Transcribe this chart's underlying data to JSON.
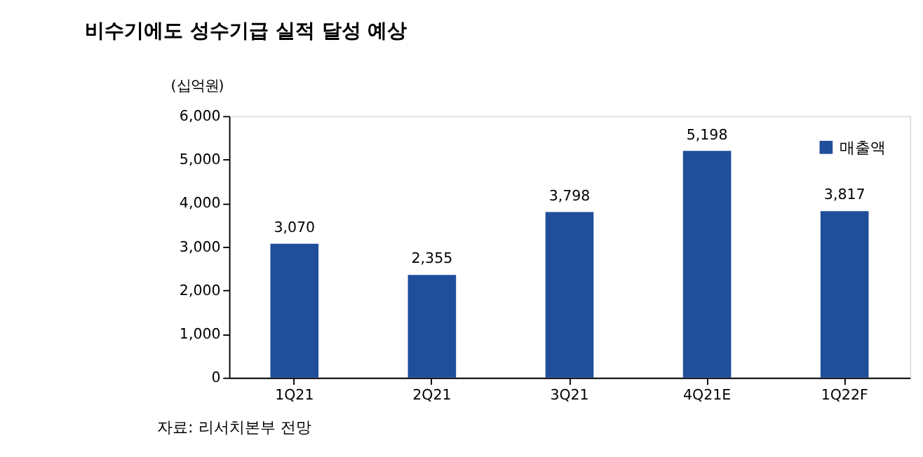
{
  "chart_data": {
    "type": "bar",
    "title": "비수기에도 성수기급 실적 달성 예상",
    "ylabel": "(십억원)",
    "categories": [
      "1Q21",
      "2Q21",
      "3Q21",
      "4Q21E",
      "1Q22F"
    ],
    "series": [
      {
        "name": "매출액",
        "color": "#1f4e9a",
        "values": [
          3070,
          2355,
          3798,
          5198,
          3817
        ],
        "value_labels": [
          "3,070",
          "2,355",
          "3,798",
          "5,198",
          "3,817"
        ]
      }
    ],
    "ylim": [
      0,
      6000
    ],
    "yticks": [
      0,
      {
        "value": 1000,
        "label": "1,000"
      },
      {
        "value": 2000,
        "label": "2,000"
      },
      {
        "value": 3000,
        "label": "3,000"
      },
      {
        "value": 4000,
        "label": "4,000"
      },
      {
        "value": 5000,
        "label": "5,000"
      },
      {
        "value": 6000,
        "label": "6,000"
      }
    ],
    "legend": "top right",
    "grid": false,
    "annotations": [
      "자료: 리서치본부 전망"
    ]
  }
}
